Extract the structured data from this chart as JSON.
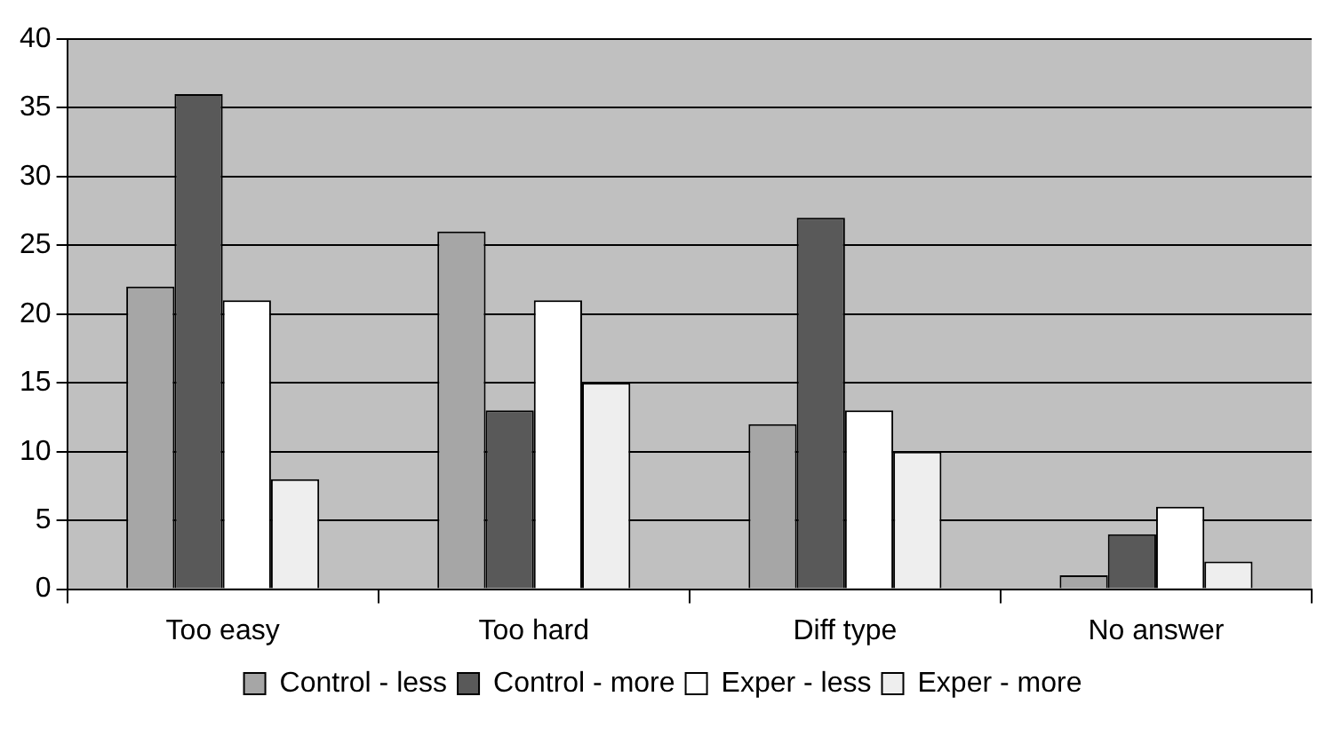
{
  "chart_data": {
    "type": "bar",
    "categories": [
      "Too easy",
      "Too hard",
      "Diff type",
      "No answer"
    ],
    "series": [
      {
        "name": "Control - less",
        "color": "#a6a6a6",
        "values": [
          22,
          26,
          12,
          1
        ]
      },
      {
        "name": "Control - more",
        "color": "#595959",
        "values": [
          36,
          13,
          27,
          4
        ]
      },
      {
        "name": "Exper - less",
        "color": "#ffffff",
        "values": [
          21,
          21,
          13,
          6
        ]
      },
      {
        "name": "Exper - more",
        "color": "#eeeeee",
        "values": [
          8,
          15,
          10,
          2
        ]
      }
    ],
    "ylim": [
      0,
      40
    ],
    "yticks": [
      0,
      5,
      10,
      15,
      20,
      25,
      30,
      35,
      40
    ],
    "grid": "y",
    "legend": "bottom"
  }
}
